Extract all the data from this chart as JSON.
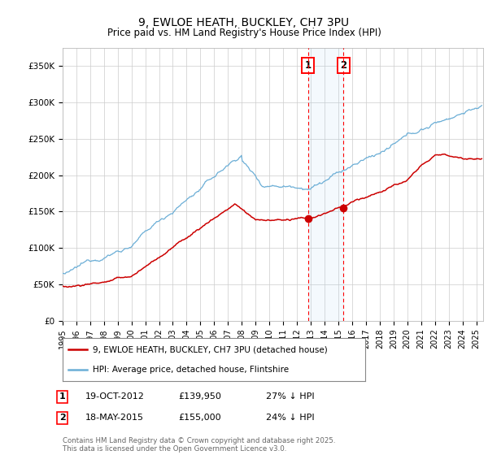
{
  "title": "9, EWLOE HEATH, BUCKLEY, CH7 3PU",
  "subtitle": "Price paid vs. HM Land Registry's House Price Index (HPI)",
  "ylabel_ticks": [
    "£0",
    "£50K",
    "£100K",
    "£150K",
    "£200K",
    "£250K",
    "£300K",
    "£350K"
  ],
  "ytick_vals": [
    0,
    50000,
    100000,
    150000,
    200000,
    250000,
    300000,
    350000
  ],
  "ylim": [
    0,
    375000
  ],
  "xlim_start": 1995,
  "xlim_end": 2025.5,
  "hpi_color": "#6baed6",
  "price_color": "#cc0000",
  "marker1_date_x": 2012.8,
  "marker2_date_x": 2015.38,
  "sale1_price_y": 139950,
  "sale2_price_y": 155000,
  "sale1_date": "19-OCT-2012",
  "sale1_price": "£139,950",
  "sale1_pct": "27% ↓ HPI",
  "sale2_date": "18-MAY-2015",
  "sale2_price": "£155,000",
  "sale2_pct": "24% ↓ HPI",
  "legend_label1": "9, EWLOE HEATH, BUCKLEY, CH7 3PU (detached house)",
  "legend_label2": "HPI: Average price, detached house, Flintshire",
  "footer": "Contains HM Land Registry data © Crown copyright and database right 2025.\nThis data is licensed under the Open Government Licence v3.0.",
  "background_color": "#ffffff",
  "grid_color": "#cccccc"
}
